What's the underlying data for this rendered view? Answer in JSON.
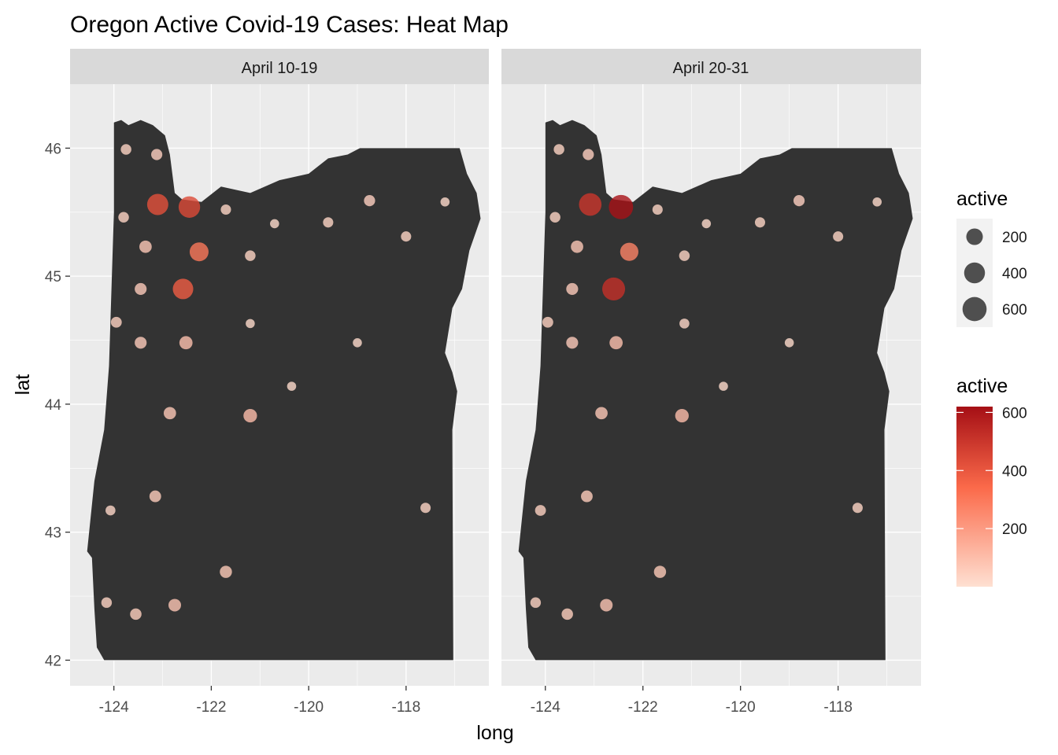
{
  "chart_data": {
    "type": "scatter",
    "subtype": "faceted bubble map",
    "title": "Oregon Active Covid-19 Cases: Heat Map",
    "xlabel": "long",
    "ylabel": "lat",
    "xlim": [
      -124.9,
      -116.3
    ],
    "ylim": [
      41.8,
      46.5
    ],
    "x_ticks": [
      -124,
      -122,
      -120,
      -118
    ],
    "x_tick_labels": [
      "-124",
      "-122",
      "-120",
      "-118"
    ],
    "y_ticks": [
      42,
      43,
      44,
      45,
      46
    ],
    "y_tick_labels": [
      "42",
      "43",
      "44",
      "45",
      "46"
    ],
    "grid": true,
    "map_fill": "#333333",
    "panel_background": "#ebebeb",
    "strip_background": "#d9d9d9",
    "color_scale": {
      "low": "#fee0d2",
      "mid": "#fb6a4a",
      "high": "#a50f15",
      "min": 0,
      "max": 620
    },
    "legend_position": "right",
    "legend_size": {
      "title": "active",
      "breaks": [
        200,
        400,
        600
      ],
      "labels": [
        "200",
        "400",
        "600"
      ]
    },
    "legend_color": {
      "title": "active",
      "breaks": [
        200,
        400,
        600
      ],
      "labels": [
        "200",
        "400",
        "600"
      ]
    },
    "facets": [
      {
        "label": "April 10-19",
        "points": [
          {
            "x": -123.1,
            "y": 45.56,
            "active": 420
          },
          {
            "x": -122.45,
            "y": 45.54,
            "active": 440
          },
          {
            "x": -122.25,
            "y": 45.19,
            "active": 300
          },
          {
            "x": -122.58,
            "y": 44.9,
            "active": 380
          },
          {
            "x": -123.35,
            "y": 45.23,
            "active": 70
          },
          {
            "x": -123.45,
            "y": 44.9,
            "active": 60
          },
          {
            "x": -123.45,
            "y": 44.48,
            "active": 60
          },
          {
            "x": -122.52,
            "y": 44.48,
            "active": 90
          },
          {
            "x": -122.85,
            "y": 43.93,
            "active": 70
          },
          {
            "x": -121.2,
            "y": 43.91,
            "active": 100
          },
          {
            "x": -123.15,
            "y": 43.28,
            "active": 55
          },
          {
            "x": -121.7,
            "y": 42.69,
            "active": 65
          },
          {
            "x": -122.75,
            "y": 42.43,
            "active": 75
          },
          {
            "x": -123.55,
            "y": 42.36,
            "active": 50
          },
          {
            "x": -124.15,
            "y": 42.45,
            "active": 35
          },
          {
            "x": -124.07,
            "y": 43.17,
            "active": 25
          },
          {
            "x": -123.95,
            "y": 44.64,
            "active": 40
          },
          {
            "x": -123.8,
            "y": 45.46,
            "active": 35
          },
          {
            "x": -123.75,
            "y": 45.99,
            "active": 35
          },
          {
            "x": -123.12,
            "y": 45.95,
            "active": 45
          },
          {
            "x": -121.7,
            "y": 45.52,
            "active": 30
          },
          {
            "x": -121.2,
            "y": 45.16,
            "active": 35
          },
          {
            "x": -121.2,
            "y": 44.63,
            "active": 15
          },
          {
            "x": -120.7,
            "y": 45.41,
            "active": 15
          },
          {
            "x": -120.35,
            "y": 44.14,
            "active": 15
          },
          {
            "x": -119.6,
            "y": 45.42,
            "active": 30
          },
          {
            "x": -119.0,
            "y": 44.48,
            "active": 15
          },
          {
            "x": -118.75,
            "y": 45.59,
            "active": 45
          },
          {
            "x": -118.0,
            "y": 45.31,
            "active": 30
          },
          {
            "x": -117.2,
            "y": 45.58,
            "active": 15
          },
          {
            "x": -117.6,
            "y": 43.19,
            "active": 30
          }
        ]
      },
      {
        "label": "April 20-31",
        "points": [
          {
            "x": -123.08,
            "y": 45.56,
            "active": 500
          },
          {
            "x": -122.45,
            "y": 45.54,
            "active": 610
          },
          {
            "x": -122.28,
            "y": 45.19,
            "active": 270
          },
          {
            "x": -122.6,
            "y": 44.9,
            "active": 520
          },
          {
            "x": -123.35,
            "y": 45.23,
            "active": 70
          },
          {
            "x": -123.45,
            "y": 44.9,
            "active": 60
          },
          {
            "x": -123.45,
            "y": 44.48,
            "active": 60
          },
          {
            "x": -122.55,
            "y": 44.48,
            "active": 90
          },
          {
            "x": -122.85,
            "y": 43.93,
            "active": 70
          },
          {
            "x": -121.2,
            "y": 43.91,
            "active": 100
          },
          {
            "x": -123.15,
            "y": 43.28,
            "active": 55
          },
          {
            "x": -121.65,
            "y": 42.69,
            "active": 65
          },
          {
            "x": -122.75,
            "y": 42.43,
            "active": 75
          },
          {
            "x": -123.55,
            "y": 42.36,
            "active": 50
          },
          {
            "x": -124.2,
            "y": 42.45,
            "active": 35
          },
          {
            "x": -124.1,
            "y": 43.17,
            "active": 40
          },
          {
            "x": -123.95,
            "y": 44.64,
            "active": 40
          },
          {
            "x": -123.8,
            "y": 45.46,
            "active": 35
          },
          {
            "x": -123.72,
            "y": 45.99,
            "active": 35
          },
          {
            "x": -123.12,
            "y": 45.95,
            "active": 45
          },
          {
            "x": -121.7,
            "y": 45.52,
            "active": 30
          },
          {
            "x": -121.15,
            "y": 45.16,
            "active": 35
          },
          {
            "x": -121.15,
            "y": 44.63,
            "active": 25
          },
          {
            "x": -120.7,
            "y": 45.41,
            "active": 15
          },
          {
            "x": -120.35,
            "y": 44.14,
            "active": 15
          },
          {
            "x": -119.6,
            "y": 45.42,
            "active": 30
          },
          {
            "x": -119.0,
            "y": 44.48,
            "active": 15
          },
          {
            "x": -118.8,
            "y": 45.59,
            "active": 45
          },
          {
            "x": -118.0,
            "y": 45.31,
            "active": 30
          },
          {
            "x": -117.2,
            "y": 45.58,
            "active": 15
          },
          {
            "x": -117.6,
            "y": 43.19,
            "active": 30
          }
        ]
      }
    ],
    "oregon_outline": [
      [
        -124.0,
        46.2
      ],
      [
        -123.85,
        46.22
      ],
      [
        -123.7,
        46.18
      ],
      [
        -123.45,
        46.22
      ],
      [
        -123.2,
        46.18
      ],
      [
        -122.95,
        46.1
      ],
      [
        -122.85,
        45.95
      ],
      [
        -122.8,
        45.8
      ],
      [
        -122.75,
        45.65
      ],
      [
        -122.6,
        45.6
      ],
      [
        -122.2,
        45.58
      ],
      [
        -121.8,
        45.7
      ],
      [
        -121.2,
        45.65
      ],
      [
        -120.6,
        45.75
      ],
      [
        -120.0,
        45.8
      ],
      [
        -119.6,
        45.92
      ],
      [
        -119.2,
        45.95
      ],
      [
        -118.95,
        46.0
      ],
      [
        -116.9,
        46.0
      ],
      [
        -116.75,
        45.8
      ],
      [
        -116.55,
        45.65
      ],
      [
        -116.47,
        45.45
      ],
      [
        -116.7,
        45.2
      ],
      [
        -116.85,
        44.9
      ],
      [
        -117.05,
        44.75
      ],
      [
        -117.2,
        44.4
      ],
      [
        -117.05,
        44.25
      ],
      [
        -116.95,
        44.1
      ],
      [
        -117.05,
        43.8
      ],
      [
        -117.03,
        42.0
      ],
      [
        -124.2,
        42.0
      ],
      [
        -124.35,
        42.1
      ],
      [
        -124.4,
        42.4
      ],
      [
        -124.45,
        42.8
      ],
      [
        -124.55,
        42.85
      ],
      [
        -124.4,
        43.4
      ],
      [
        -124.2,
        43.8
      ],
      [
        -124.1,
        44.3
      ],
      [
        -124.05,
        44.9
      ],
      [
        -124.0,
        45.5
      ],
      [
        -124.0,
        46.2
      ]
    ]
  }
}
